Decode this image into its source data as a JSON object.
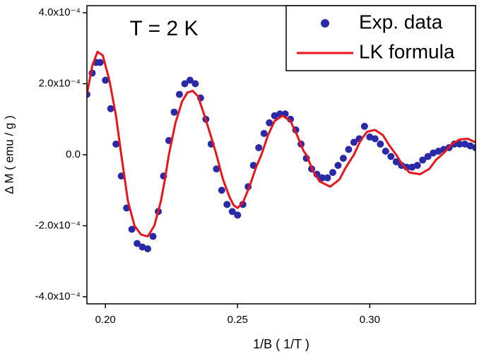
{
  "chart_data": {
    "type": "scatter",
    "annotation": "T = 2 K",
    "xlabel": "1/B  ( 1/T )",
    "ylabel": "Δ M ( emu / g )",
    "xlim": [
      0.193,
      0.34
    ],
    "ylim": [
      -0.00042,
      0.00042
    ],
    "xticks": [
      {
        "value": 0.2,
        "label": "0.20"
      },
      {
        "value": 0.25,
        "label": "0.25"
      },
      {
        "value": 0.3,
        "label": "0.30"
      }
    ],
    "yticks": [
      {
        "value": -0.0004,
        "label": "-4.0x10⁻⁴"
      },
      {
        "value": -0.0002,
        "label": "-2.0x10⁻⁴"
      },
      {
        "value": 0,
        "label": "0.0"
      },
      {
        "value": 0.0002,
        "label": "2.0x10⁻⁴"
      },
      {
        "value": 0.0004,
        "label": "4.0x10⁻⁴"
      }
    ],
    "legend": "upper right",
    "series": [
      {
        "name": "Exp. data",
        "style": "marker",
        "color": "#2a2aa8",
        "x": [
          0.193,
          0.195,
          0.1965,
          0.198,
          0.2,
          0.202,
          0.204,
          0.206,
          0.208,
          0.21,
          0.212,
          0.214,
          0.216,
          0.218,
          0.22,
          0.222,
          0.224,
          0.226,
          0.228,
          0.23,
          0.232,
          0.234,
          0.236,
          0.238,
          0.24,
          0.242,
          0.244,
          0.246,
          0.248,
          0.25,
          0.252,
          0.254,
          0.256,
          0.258,
          0.26,
          0.262,
          0.264,
          0.266,
          0.268,
          0.27,
          0.272,
          0.274,
          0.276,
          0.278,
          0.28,
          0.282,
          0.284,
          0.286,
          0.288,
          0.29,
          0.292,
          0.294,
          0.296,
          0.298,
          0.3,
          0.302,
          0.304,
          0.306,
          0.308,
          0.31,
          0.312,
          0.314,
          0.316,
          0.318,
          0.32,
          0.322,
          0.324,
          0.326,
          0.328,
          0.33,
          0.332,
          0.334,
          0.336,
          0.338,
          0.34
        ],
        "values": [
          0.00017,
          0.00023,
          0.00026,
          0.00026,
          0.00021,
          0.00013,
          3e-05,
          -6e-05,
          -0.00015,
          -0.00021,
          -0.00025,
          -0.00026,
          -0.000265,
          -0.00023,
          -0.00016,
          -6e-05,
          4e-05,
          0.00012,
          0.00017,
          0.0002,
          0.00021,
          0.0002,
          0.00016,
          0.0001,
          3e-05,
          -4e-05,
          -0.0001,
          -0.00014,
          -0.00016,
          -0.00017,
          -0.00014,
          -9e-05,
          -3e-05,
          2e-05,
          6e-05,
          9e-05,
          0.00011,
          0.000115,
          0.000115,
          0.0001,
          7e-05,
          3e-05,
          -1e-05,
          -4e-05,
          -5.5e-05,
          -6.5e-05,
          -6.5e-05,
          -5e-05,
          -3e-05,
          -1e-05,
          1.5e-05,
          3.5e-05,
          4.5e-05,
          8e-05,
          5e-05,
          4.5e-05,
          3e-05,
          1e-05,
          -5e-06,
          -2e-05,
          -3e-05,
          -3.5e-05,
          -3.5e-05,
          -3e-05,
          -1.5e-05,
          -5e-06,
          5e-06,
          1e-05,
          1.5e-05,
          2e-05,
          3e-05,
          3e-05,
          3e-05,
          2.5e-05,
          2e-05
        ]
      },
      {
        "name": "LK formula",
        "style": "line",
        "color": "#e8161c",
        "x": [
          0.193,
          0.195,
          0.197,
          0.199,
          0.2015,
          0.204,
          0.206,
          0.2085,
          0.211,
          0.2135,
          0.216,
          0.2185,
          0.221,
          0.2225,
          0.224,
          0.2265,
          0.229,
          0.231,
          0.233,
          0.235,
          0.2375,
          0.24,
          0.242,
          0.2445,
          0.247,
          0.2485,
          0.25,
          0.252,
          0.2545,
          0.257,
          0.259,
          0.2615,
          0.264,
          0.267,
          0.27,
          0.2725,
          0.275,
          0.276,
          0.2785,
          0.281,
          0.285,
          0.2885,
          0.291,
          0.294,
          0.2965,
          0.299,
          0.302,
          0.305,
          0.3075,
          0.31,
          0.3125,
          0.315,
          0.319,
          0.3225,
          0.325,
          0.328,
          0.331,
          0.334,
          0.337,
          0.34
        ],
        "values": [
          0.00017,
          0.00025,
          0.00029,
          0.00028,
          0.00021,
          0.00011,
          0,
          -0.00013,
          -0.0002,
          -0.000225,
          -0.00023,
          -0.0002,
          -0.00013,
          -7e-05,
          0,
          9e-05,
          0.00015,
          0.000175,
          0.00018,
          0.000165,
          0.00011,
          5e-05,
          0,
          -7e-05,
          -0.00012,
          -0.000142,
          -0.00015,
          -0.000135,
          -9e-05,
          -3.5e-05,
          0,
          5.5e-05,
          9.5e-05,
          0.00011,
          9.5e-05,
          5.5e-05,
          1e-05,
          0,
          -4.5e-05,
          -7.5e-05,
          -9e-05,
          -7e-05,
          -3.5e-05,
          0,
          4e-05,
          6.5e-05,
          7e-05,
          5.5e-05,
          2.5e-05,
          0,
          -3e-05,
          -5e-05,
          -5.5e-05,
          -4e-05,
          -1.5e-05,
          5e-06,
          3e-05,
          4.3e-05,
          4.5e-05,
          3.5e-05
        ]
      }
    ]
  }
}
